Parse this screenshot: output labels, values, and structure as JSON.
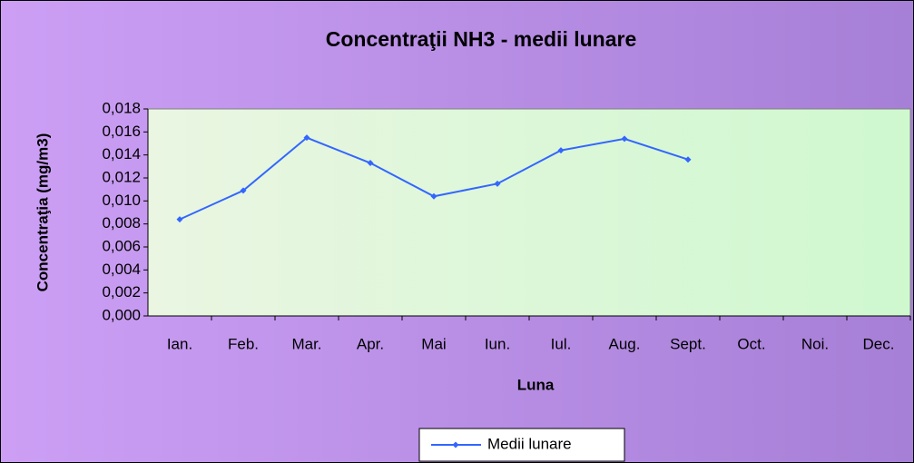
{
  "chart_data": {
    "type": "line",
    "title": "Concentraţii NH3 - medii lunare",
    "x_label": "Luna",
    "y_label": "Concentraţia (mg/m3)",
    "categories": [
      "Ian.",
      "Feb.",
      "Mar.",
      "Apr.",
      "Mai",
      "Iun.",
      "Iul.",
      "Aug.",
      "Sept.",
      "Oct.",
      "Noi.",
      "Dec."
    ],
    "series": [
      {
        "name": "Medii lunare",
        "color": "#3366ff",
        "values": [
          0.0084,
          0.0109,
          0.0155,
          0.0133,
          0.0104,
          0.0115,
          0.0144,
          0.0154,
          0.0136,
          null,
          null,
          null
        ]
      }
    ],
    "ylim": [
      0,
      0.018
    ],
    "yticks": [
      {
        "value": 0,
        "label": "0,000"
      },
      {
        "value": 0.002,
        "label": "0,002"
      },
      {
        "value": 0.004,
        "label": "0,004"
      },
      {
        "value": 0.006,
        "label": "0,006"
      },
      {
        "value": 0.008,
        "label": "0,008"
      },
      {
        "value": 0.01,
        "label": "0,010"
      },
      {
        "value": 0.012,
        "label": "0,012"
      },
      {
        "value": 0.014,
        "label": "0,014"
      },
      {
        "value": 0.016,
        "label": "0,016"
      },
      {
        "value": 0.018,
        "label": "0,018"
      }
    ],
    "grid": false,
    "legend": "bottom"
  }
}
